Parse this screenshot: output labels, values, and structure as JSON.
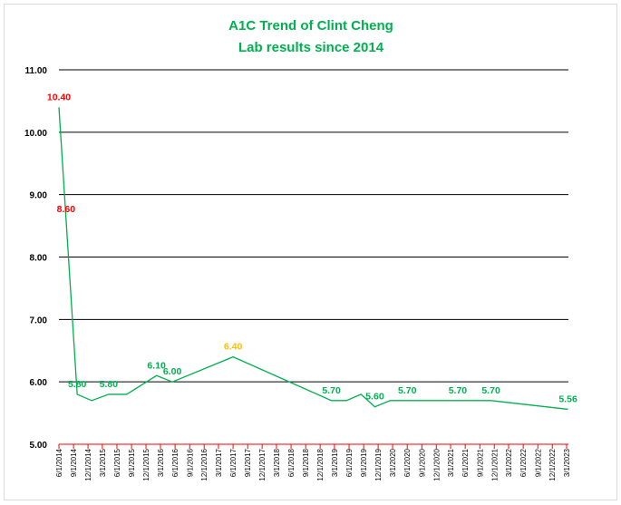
{
  "chart_data": {
    "type": "line",
    "title": "A1C Trend of Clint Cheng",
    "subtitle": "Lab results since 2014",
    "x": [
      "6/1/2014",
      "7/16/2014",
      "9/24/2014",
      "12/24/2014",
      "4/10/2015",
      "8/1/2015",
      "2/5/2016",
      "5/15/2016",
      "6/1/2017",
      "2/10/2019",
      "5/15/2019",
      "8/15/2019",
      "11/10/2019",
      "2/15/2020",
      "6/1/2020",
      "4/15/2021",
      "11/10/2021",
      "3/10/2023"
    ],
    "values": [
      10.4,
      8.6,
      5.8,
      5.7,
      5.8,
      5.8,
      6.1,
      6.0,
      6.4,
      5.7,
      5.7,
      5.8,
      5.6,
      5.7,
      5.7,
      5.7,
      5.7,
      5.56
    ],
    "value_labels": [
      "10.40",
      "8.60",
      "5.80",
      null,
      "5.80",
      null,
      "6.10",
      "6.00",
      "6.40",
      "5.70",
      null,
      null,
      "5.60",
      null,
      "5.70",
      "5.70",
      "5.70",
      "5.56"
    ],
    "value_label_colors": [
      "#ff0000",
      "#ff0000",
      "#00b050",
      null,
      "#00b050",
      null,
      "#00b050",
      "#00b050",
      "#ffc000",
      "#00b050",
      null,
      null,
      "#00b050",
      null,
      "#00b050",
      "#00b050",
      "#00b050",
      "#00b050"
    ],
    "color": "#00b050",
    "title_color": "#00b050",
    "axis_color": "#ff0000",
    "grid": true,
    "ylim": [
      5,
      11
    ],
    "yticks": [
      {
        "value": 5,
        "label": "5.00"
      },
      {
        "value": 6,
        "label": "6.00"
      },
      {
        "value": 7,
        "label": "7.00"
      },
      {
        "value": 8,
        "label": "8.00"
      },
      {
        "value": 9,
        "label": "9.00"
      },
      {
        "value": 10,
        "label": "10.00"
      },
      {
        "value": 11,
        "label": "11.00"
      }
    ],
    "xlim": [
      "6/1/2014",
      "3/1/2023"
    ],
    "xticks": [
      "6/1/2014",
      "9/1/2014",
      "12/1/2014",
      "3/1/2015",
      "6/1/2015",
      "9/1/2015",
      "12/1/2015",
      "3/1/2016",
      "6/1/2016",
      "9/1/2016",
      "12/1/2016",
      "3/1/2017",
      "6/1/2017",
      "9/1/2017",
      "12/1/2017",
      "3/1/2018",
      "6/1/2018",
      "9/1/2018",
      "12/1/2018",
      "3/1/2019",
      "6/1/2019",
      "9/1/2019",
      "12/1/2019",
      "3/1/2020",
      "6/1/2020",
      "9/1/2020",
      "12/1/2020",
      "3/1/2021",
      "6/1/2021",
      "9/1/2021",
      "12/1/2021",
      "3/1/2022",
      "6/1/2022",
      "9/1/2022",
      "12/1/2022",
      "3/1/2023"
    ]
  }
}
